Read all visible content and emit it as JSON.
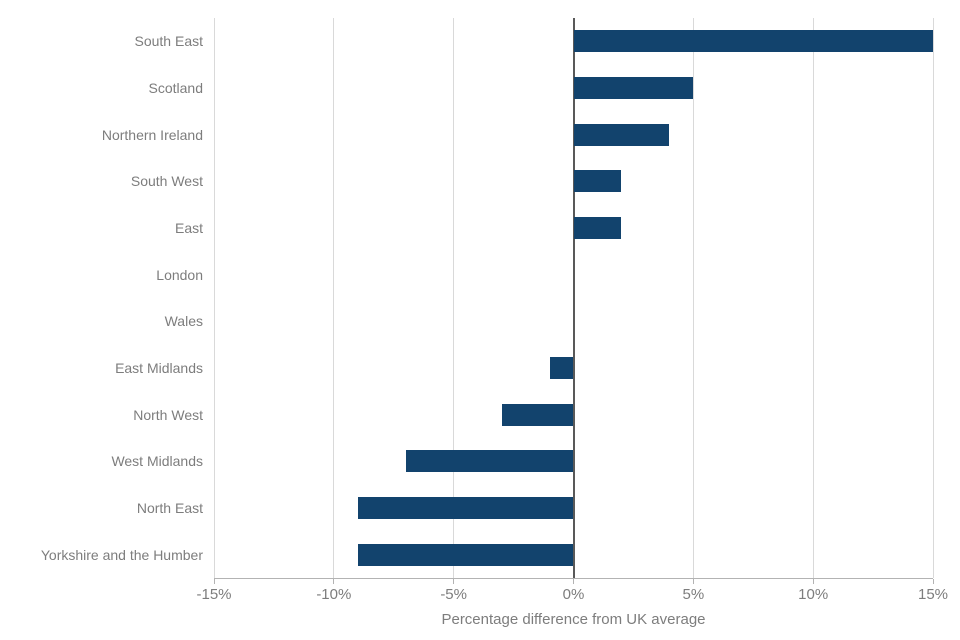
{
  "chart_data": {
    "type": "bar",
    "orientation": "horizontal",
    "title": "",
    "xlabel": "Percentage difference from UK average",
    "ylabel": "",
    "categories": [
      "South East",
      "Scotland",
      "Northern Ireland",
      "South West",
      "East",
      "London",
      "Wales",
      "East Midlands",
      "North West",
      "West Midlands",
      "North East",
      "Yorkshire and the Humber"
    ],
    "values": [
      15,
      5,
      4,
      2,
      2,
      0,
      0,
      -1,
      -3,
      -7,
      -9,
      -9
    ],
    "unit": "%",
    "xlim": [
      -15,
      15
    ],
    "xticks": [
      -15,
      -10,
      -5,
      0,
      5,
      10,
      15
    ],
    "xtick_labels": [
      "-15%",
      "-10%",
      "-5%",
      "0%",
      "5%",
      "10%",
      "15%"
    ],
    "grid": true,
    "legend": false,
    "colors": {
      "bar": "#12436D",
      "zero_line": "#595959",
      "gridline": "#d9d9d9",
      "axis_line": "#b3b3b3",
      "text": "#7d7d7d"
    }
  }
}
